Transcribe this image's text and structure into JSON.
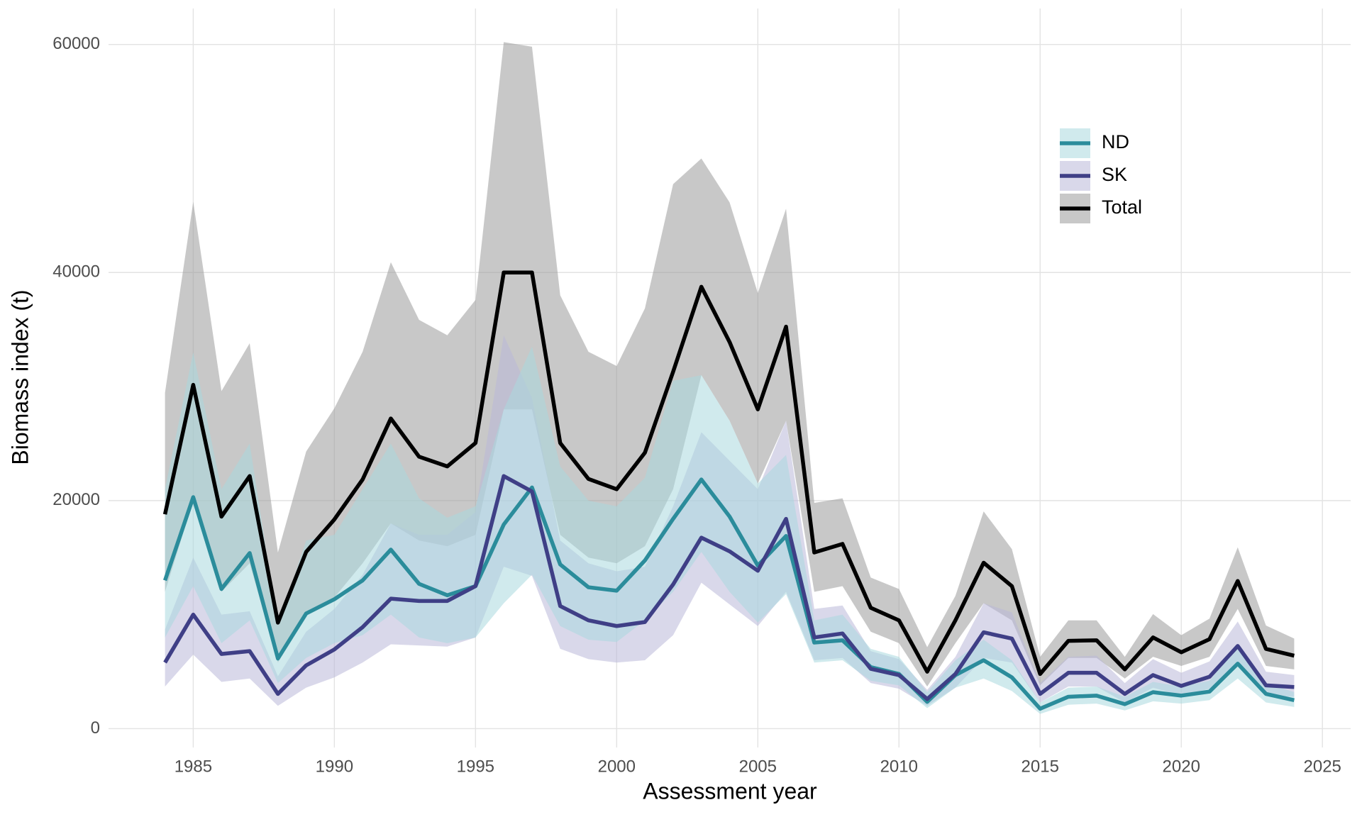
{
  "chart_data": {
    "type": "line",
    "x_label": "Assessment year",
    "y_label": "Biomass index (t)",
    "x": [
      1984,
      1985,
      1986,
      1987,
      1988,
      1989,
      1990,
      1991,
      1992,
      1993,
      1994,
      1995,
      1996,
      1997,
      1998,
      1999,
      2000,
      2001,
      2002,
      2003,
      2004,
      2005,
      2006,
      2007,
      2008,
      2009,
      2010,
      2011,
      2012,
      2013,
      2014,
      2015,
      2016,
      2017,
      2018,
      2019,
      2020,
      2021,
      2022,
      2023,
      2024
    ],
    "xlim": [
      1982,
      2026
    ],
    "xticks": [
      1985,
      1990,
      1995,
      2000,
      2005,
      2010,
      2015,
      2020,
      2025
    ],
    "ylim": [
      -1650,
      63150
    ],
    "yticks": [
      0,
      20000,
      40000,
      60000
    ],
    "grid": true,
    "legend_position": "top-right",
    "series": [
      {
        "name": "ND",
        "color": "#2b8c9b",
        "band_color": "#a9d9df",
        "values": [
          13000,
          20300,
          12250,
          15400,
          6150,
          10100,
          11350,
          13000,
          15700,
          12700,
          11700,
          12500,
          17900,
          21150,
          14400,
          12400,
          12100,
          14750,
          18400,
          21850,
          18600,
          14300,
          16900,
          7550,
          7750,
          5400,
          4800,
          2350,
          4700,
          6000,
          4500,
          1750,
          2800,
          2900,
          2150,
          3200,
          2900,
          3250,
          5700,
          3050,
          2500
        ],
        "upper": [
          21000,
          33000,
          21000,
          25000,
          9000,
          16500,
          17000,
          21000,
          25000,
          20200,
          18500,
          19500,
          28000,
          33500,
          23000,
          20000,
          19500,
          22000,
          30500,
          31000,
          27000,
          21500,
          24000,
          9500,
          10000,
          7000,
          6300,
          3200,
          6000,
          7800,
          6000,
          2300,
          3600,
          3700,
          2800,
          4100,
          3700,
          4200,
          7300,
          4000,
          3200
        ],
        "lower": [
          8000,
          12500,
          7500,
          9500,
          4000,
          6200,
          7500,
          8200,
          10000,
          8000,
          7500,
          8000,
          11000,
          13500,
          9000,
          7800,
          7600,
          9500,
          12000,
          15500,
          12000,
          9300,
          11800,
          5800,
          6000,
          4200,
          3800,
          1800,
          3600,
          4400,
          3300,
          1300,
          2100,
          2200,
          1600,
          2400,
          2200,
          2500,
          4400,
          2300,
          1900
        ]
      },
      {
        "name": "SK",
        "color": "#3f3f86",
        "band_color": "#bab8d8",
        "values": [
          5800,
          10000,
          6550,
          6800,
          3050,
          5550,
          6950,
          8900,
          11400,
          11200,
          11200,
          12500,
          22150,
          20800,
          10750,
          9500,
          9000,
          9350,
          12650,
          16750,
          15550,
          13850,
          18400,
          8000,
          8350,
          5250,
          4700,
          2600,
          4800,
          8450,
          7900,
          3050,
          4900,
          4900,
          3050,
          4700,
          3750,
          4550,
          7250,
          3800,
          3650
        ],
        "upper": [
          8700,
          15000,
          10000,
          10300,
          4600,
          8500,
          10500,
          13500,
          18000,
          17000,
          17000,
          19000,
          34500,
          29000,
          16500,
          14500,
          13800,
          14200,
          19500,
          26000,
          23500,
          21000,
          27000,
          10500,
          10800,
          6800,
          6100,
          3400,
          6300,
          11000,
          10200,
          4000,
          6300,
          6400,
          4000,
          6100,
          4900,
          5900,
          9400,
          5000,
          4700
        ],
        "lower": [
          3700,
          6500,
          4100,
          4400,
          2000,
          3600,
          4500,
          5800,
          7400,
          7300,
          7200,
          8000,
          14200,
          13400,
          7000,
          6100,
          5800,
          6000,
          8200,
          12800,
          10900,
          9000,
          12000,
          6000,
          6200,
          4000,
          3500,
          2000,
          3600,
          6200,
          5800,
          2300,
          3700,
          3700,
          2300,
          3600,
          2900,
          3500,
          5500,
          2900,
          2800
        ]
      },
      {
        "name": "Total",
        "color": "#000000",
        "band_color": "#9a9a9a",
        "values": [
          18800,
          30150,
          18600,
          22150,
          9300,
          15500,
          18350,
          21850,
          27200,
          23850,
          23000,
          25050,
          40000,
          40000,
          25050,
          21900,
          21000,
          24200,
          31300,
          38750,
          33900,
          28000,
          35250,
          15450,
          16200,
          10600,
          9500,
          5000,
          9500,
          14550,
          12500,
          4800,
          7700,
          7750,
          5200,
          8000,
          6700,
          7850,
          12950,
          7000,
          6400
        ],
        "upper": [
          29450,
          46200,
          29600,
          33800,
          15450,
          24300,
          28100,
          33050,
          40900,
          35850,
          34500,
          37600,
          60200,
          59800,
          38000,
          33050,
          31800,
          36850,
          47750,
          50000,
          46150,
          38200,
          45600,
          19800,
          20200,
          13250,
          12250,
          7150,
          11650,
          19050,
          15750,
          6300,
          9500,
          9500,
          6300,
          10050,
          8200,
          9650,
          15900,
          9050,
          7900
        ],
        "lower": [
          12000,
          20000,
          12000,
          14500,
          5800,
          10000,
          11500,
          14500,
          18000,
          16500,
          16000,
          17000,
          28000,
          28000,
          17000,
          15000,
          14500,
          16000,
          21000,
          31000,
          27000,
          21500,
          27000,
          12000,
          12500,
          8500,
          7500,
          3700,
          7500,
          11000,
          9500,
          3800,
          6200,
          6200,
          4400,
          6300,
          5500,
          6300,
          10500,
          5500,
          5200
        ]
      }
    ]
  }
}
